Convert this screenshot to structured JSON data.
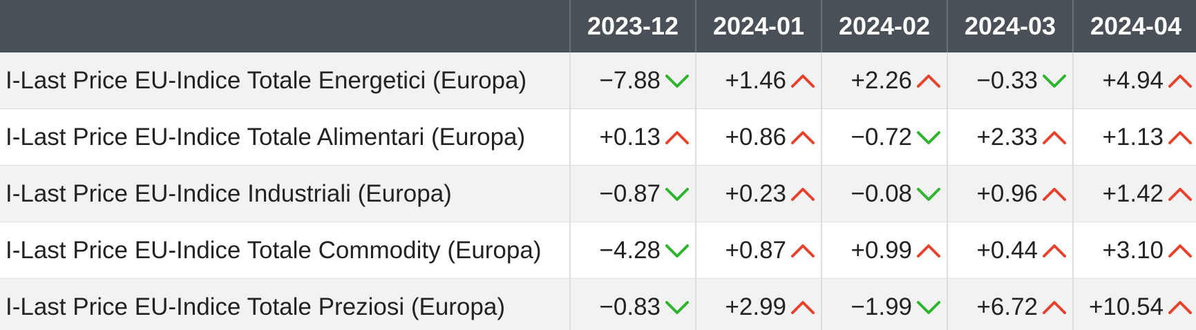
{
  "colors": {
    "header_bg": "#4a5058",
    "up": "#e8412c",
    "down": "#2cb52c"
  },
  "columns": [
    "2023-12",
    "2024-01",
    "2024-02",
    "2024-03",
    "2024-04"
  ],
  "rows": [
    {
      "label": "I-Last Price EU-Indice Totale Energetici (Europa)",
      "cells": [
        {
          "value": "−7.88",
          "dir": "down"
        },
        {
          "value": "+1.46",
          "dir": "up"
        },
        {
          "value": "+2.26",
          "dir": "up"
        },
        {
          "value": "−0.33",
          "dir": "down"
        },
        {
          "value": "+4.94",
          "dir": "up"
        }
      ]
    },
    {
      "label": "I-Last Price EU-Indice Totale Alimentari (Europa)",
      "cells": [
        {
          "value": "+0.13",
          "dir": "up"
        },
        {
          "value": "+0.86",
          "dir": "up"
        },
        {
          "value": "−0.72",
          "dir": "down"
        },
        {
          "value": "+2.33",
          "dir": "up"
        },
        {
          "value": "+1.13",
          "dir": "up"
        }
      ]
    },
    {
      "label": "I-Last Price EU-Indice Industriali (Europa)",
      "cells": [
        {
          "value": "−0.87",
          "dir": "down"
        },
        {
          "value": "+0.23",
          "dir": "up"
        },
        {
          "value": "−0.08",
          "dir": "down"
        },
        {
          "value": "+0.96",
          "dir": "up"
        },
        {
          "value": "+1.42",
          "dir": "up"
        }
      ]
    },
    {
      "label": "I-Last Price EU-Indice Totale Commodity (Europa)",
      "cells": [
        {
          "value": "−4.28",
          "dir": "down"
        },
        {
          "value": "+0.87",
          "dir": "up"
        },
        {
          "value": "+0.99",
          "dir": "up"
        },
        {
          "value": "+0.44",
          "dir": "up"
        },
        {
          "value": "+3.10",
          "dir": "up"
        }
      ]
    },
    {
      "label": "I-Last Price EU-Indice Totale Preziosi (Europa)",
      "cells": [
        {
          "value": "−0.83",
          "dir": "down"
        },
        {
          "value": "+2.99",
          "dir": "up"
        },
        {
          "value": "−1.99",
          "dir": "down"
        },
        {
          "value": "+6.72",
          "dir": "up"
        },
        {
          "value": "+10.54",
          "dir": "up"
        }
      ]
    }
  ]
}
